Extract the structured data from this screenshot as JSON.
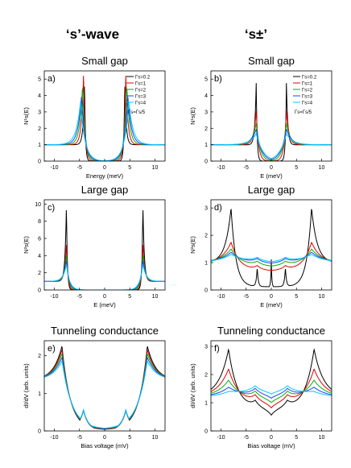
{
  "columns": [
    {
      "title": "‘s’-wave"
    },
    {
      "title": "‘s±’"
    }
  ],
  "colors": {
    "g0.2": "#000000",
    "g1": "#e00000",
    "g2": "#00b000",
    "g3": "#2040ff",
    "g4": "#00c8ff"
  },
  "chart_data": [
    {
      "id": "a",
      "type": "line",
      "label": "a)",
      "title": "Small gap",
      "xlabel": "Energy (meV)",
      "ylabel": "N¹s(E)",
      "xlim": [
        -12,
        12
      ],
      "ylim": [
        0,
        5.5
      ],
      "xticks": [
        -10,
        -5,
        0,
        5,
        10
      ],
      "yticks": [
        0,
        1,
        2,
        3,
        4,
        5
      ],
      "legend": {
        "placement": "top-right",
        "entries": [
          "Γs=0.2",
          "Γs=1",
          "Γs=2",
          "Γs=3",
          "Γs=4"
        ],
        "note": "Γs=Γs/5"
      },
      "series": [
        {
          "name": "Γs=0.2",
          "color": "#000000",
          "gap": 4.0,
          "broad": 0.05,
          "peak": 4.8
        },
        {
          "name": "Γs=1",
          "color": "#e00000",
          "gap": 4.2,
          "broad": 0.3,
          "peak": 5.2
        },
        {
          "name": "Γs=2",
          "color": "#00b000",
          "gap": 4.4,
          "broad": 0.6,
          "peak": 4.6
        },
        {
          "name": "Γs=3",
          "color": "#2040ff",
          "gap": 4.6,
          "broad": 0.9,
          "peak": 4.0
        },
        {
          "name": "Γs=4",
          "color": "#00c8ff",
          "gap": 4.8,
          "broad": 1.2,
          "peak": 3.6
        }
      ]
    },
    {
      "id": "b",
      "type": "line",
      "label": "b)",
      "title": "Small gap",
      "xlabel": "E (meV)",
      "ylabel": "N¹s(E)",
      "xlim": [
        -12,
        12
      ],
      "ylim": [
        0,
        5.5
      ],
      "xticks": [
        -10,
        -5,
        0,
        5,
        10
      ],
      "yticks": [
        0,
        1,
        2,
        3,
        4,
        5
      ],
      "legend": {
        "placement": "top-right",
        "entries": [
          "Γs=0.2",
          "Γs=1",
          "Γs=2",
          "Γs=3",
          "Γs=4"
        ],
        "note": "Γs=Γs/5"
      },
      "series": [
        {
          "name": "Γs=0.2",
          "color": "#000000",
          "gap": 3.0,
          "broad": 0.05,
          "peak": 5.0
        },
        {
          "name": "Γs=1",
          "color": "#e00000",
          "gap": 3.0,
          "broad": 0.5,
          "peak": 3.2
        },
        {
          "name": "Γs=2",
          "color": "#00b000",
          "gap": 3.0,
          "broad": 1.0,
          "peak": 2.4
        },
        {
          "name": "Γs=3",
          "color": "#2040ff",
          "gap": 3.0,
          "broad": 1.5,
          "peak": 2.0
        },
        {
          "name": "Γs=4",
          "color": "#00c8ff",
          "gap": 3.0,
          "broad": 2.0,
          "peak": 1.7
        }
      ]
    },
    {
      "id": "c",
      "type": "line",
      "label": "c)",
      "title": "Large gap",
      "xlabel": "E (meV)",
      "ylabel": "N²s(E)",
      "xlim": [
        -12,
        12
      ],
      "ylim": [
        0,
        10.5
      ],
      "xticks": [
        -10,
        -5,
        0,
        5,
        10
      ],
      "yticks": [
        0,
        2,
        4,
        6,
        8,
        10
      ],
      "series": [
        {
          "name": "Γs=0.2",
          "color": "#000000",
          "gap": 7.6,
          "broad": 0.05,
          "peak": 9.9
        },
        {
          "name": "Γs=1",
          "color": "#e00000",
          "gap": 7.6,
          "broad": 0.2,
          "peak": 5.5
        },
        {
          "name": "Γs=2",
          "color": "#00b000",
          "gap": 7.6,
          "broad": 0.4,
          "peak": 4.2
        },
        {
          "name": "Γs=3",
          "color": "#2040ff",
          "gap": 7.6,
          "broad": 0.6,
          "peak": 3.5
        },
        {
          "name": "Γs=4",
          "color": "#00c8ff",
          "gap": 7.6,
          "broad": 0.8,
          "peak": 3.0
        }
      ]
    },
    {
      "id": "d",
      "type": "line",
      "label": "d)",
      "title": "Large gap",
      "xlabel": "E (meV)",
      "ylabel": "N²s(E)",
      "xlim": [
        -12,
        12
      ],
      "ylim": [
        0,
        3.3
      ],
      "xticks": [
        -10,
        -5,
        0,
        5,
        10
      ],
      "yticks": [
        0,
        1,
        2,
        3
      ],
      "series": [
        {
          "name": "Γs=0.2",
          "color": "#000000",
          "gap": 8.0,
          "broad": 0.6,
          "peak": 3.0,
          "inner": 0.0
        },
        {
          "name": "Γs=1",
          "color": "#e00000",
          "gap": 8.0,
          "broad": 1.8,
          "peak": 1.75,
          "inner": 0.7
        },
        {
          "name": "Γs=2",
          "color": "#00b000",
          "gap": 8.0,
          "broad": 2.6,
          "peak": 1.5,
          "inner": 0.85
        },
        {
          "name": "Γs=3",
          "color": "#2040ff",
          "gap": 8.0,
          "broad": 3.2,
          "peak": 1.38,
          "inner": 0.95
        },
        {
          "name": "Γs=4",
          "color": "#00c8ff",
          "gap": 8.0,
          "broad": 3.8,
          "peak": 1.3,
          "inner": 1.0
        }
      ]
    },
    {
      "id": "e",
      "type": "line",
      "label": "e)",
      "title": "Tunneling conductance",
      "xlabel": "Bias voltage (mV)",
      "ylabel": "dI/dV (arb. units)",
      "xlim": [
        -12,
        12
      ],
      "ylim": [
        0,
        2.4
      ],
      "xticks": [
        -10,
        -5,
        0,
        5,
        10
      ],
      "yticks": [
        0,
        1,
        2
      ],
      "series": [
        {
          "name": "Γs=0.2",
          "color": "#000000",
          "gap": 8.5,
          "broad": 1.6,
          "peak": 2.25
        },
        {
          "name": "Γs=1",
          "color": "#e00000",
          "gap": 8.5,
          "broad": 1.8,
          "peak": 2.15
        },
        {
          "name": "Γs=2",
          "color": "#00b000",
          "gap": 8.5,
          "broad": 2.0,
          "peak": 2.05
        },
        {
          "name": "Γs=3",
          "color": "#2040ff",
          "gap": 8.5,
          "broad": 2.2,
          "peak": 1.95
        },
        {
          "name": "Γs=4",
          "color": "#00c8ff",
          "gap": 8.5,
          "broad": 2.4,
          "peak": 1.85
        }
      ]
    },
    {
      "id": "f",
      "type": "line",
      "label": "f)",
      "title": "Tunneling conductance",
      "xlabel": "Bias voltage (mV)",
      "ylabel": "dI/dV (arb. units)",
      "xlim": [
        -12,
        12
      ],
      "ylim": [
        0,
        3.2
      ],
      "xticks": [
        -10,
        -5,
        0,
        5,
        10
      ],
      "yticks": [
        0,
        1,
        2,
        3
      ],
      "series": [
        {
          "name": "Γs=0.2",
          "color": "#000000",
          "gap": 8.5,
          "broad": 1.4,
          "peak": 2.9
        },
        {
          "name": "Γs=1",
          "color": "#e00000",
          "gap": 8.5,
          "broad": 2.2,
          "peak": 2.2
        },
        {
          "name": "Γs=2",
          "color": "#00b000",
          "gap": 8.5,
          "broad": 2.8,
          "peak": 1.8
        },
        {
          "name": "Γs=3",
          "color": "#2040ff",
          "gap": 8.5,
          "broad": 3.3,
          "peak": 1.55
        },
        {
          "name": "Γs=4",
          "color": "#00c8ff",
          "gap": 8.5,
          "broad": 3.8,
          "peak": 1.4
        }
      ]
    }
  ]
}
